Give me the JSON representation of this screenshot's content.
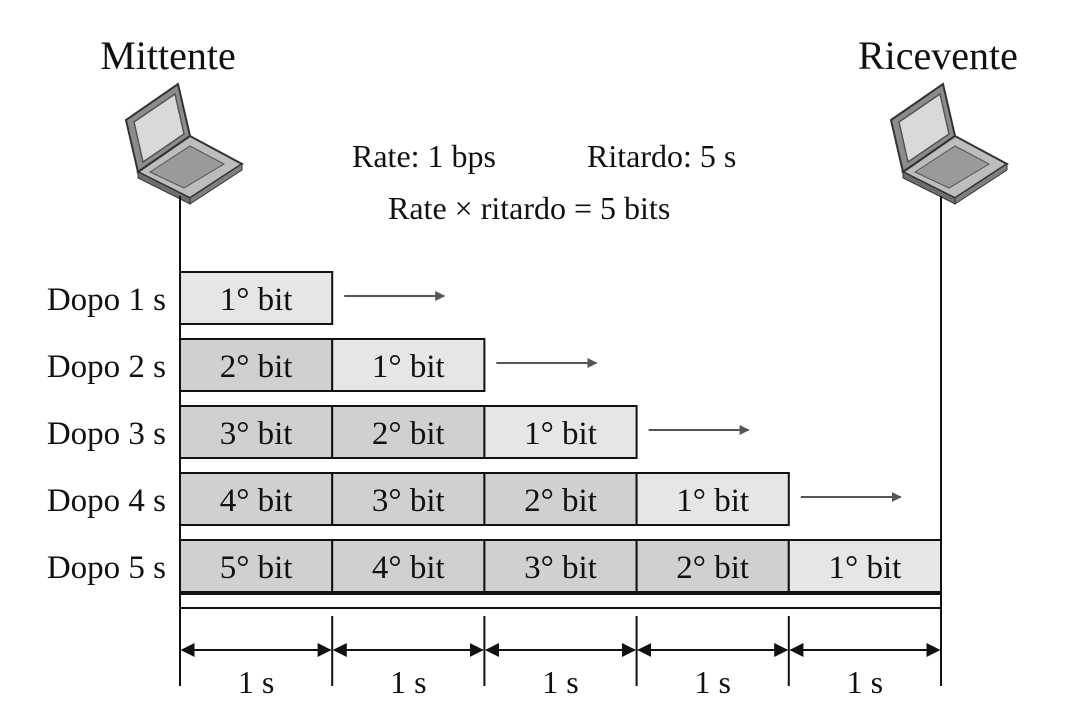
{
  "sender": {
    "label": "Mittente",
    "icon": "laptop-icon"
  },
  "receiver": {
    "label": "Ricevente",
    "icon": "laptop-icon"
  },
  "info": {
    "rate": "Rate: 1 bps",
    "delay": "Ritardo: 5 s",
    "product": "Rate × ritardo = 5 bits"
  },
  "rows": [
    {
      "label": "Dopo 1 s",
      "bits": [
        "1° bit"
      ]
    },
    {
      "label": "Dopo 2 s",
      "bits": [
        "2° bit",
        "1° bit"
      ]
    },
    {
      "label": "Dopo 3 s",
      "bits": [
        "3° bit",
        "2° bit",
        "1° bit"
      ]
    },
    {
      "label": "Dopo 4 s",
      "bits": [
        "4° bit",
        "3° bit",
        "2° bit",
        "1° bit"
      ]
    },
    {
      "label": "Dopo 5 s",
      "bits": [
        "5° bit",
        "4° bit",
        "3° bit",
        "2° bit",
        "1° bit"
      ]
    }
  ],
  "durations": [
    "1 s",
    "1 s",
    "1 s",
    "1 s",
    "1 s"
  ],
  "colors": {
    "oldest_bit": "#e6e6e6",
    "other_bits": "#d0d0d0",
    "stroke": "#111111",
    "arrow": "#555555"
  }
}
